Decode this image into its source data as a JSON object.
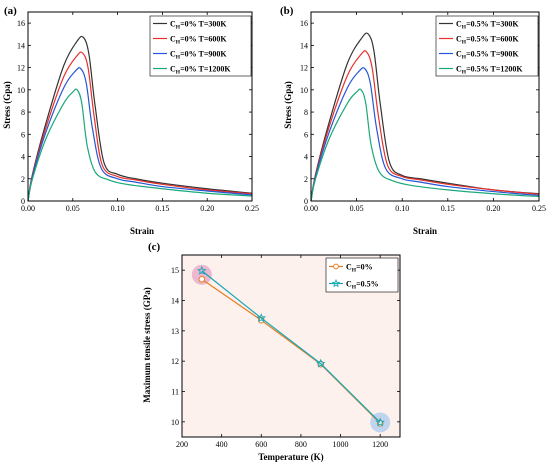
{
  "chart_data": [
    {
      "panel": "(a)",
      "type": "line",
      "xlabel": "Strain",
      "ylabel": "Stress (Gpa)",
      "xlim": [
        0,
        0.25
      ],
      "ylim": [
        0,
        17
      ],
      "xticks": [
        "0.00",
        "0.05",
        "0.10",
        "0.15",
        "0.20",
        "0.25"
      ],
      "yticks": [
        "0",
        "2",
        "4",
        "6",
        "8",
        "10",
        "12",
        "14",
        "16"
      ],
      "legend_position": "top-right",
      "series": [
        {
          "name": "C",
          "sub": "H",
          "rest": "=0% T=300K",
          "color": "#333333",
          "x": [
            0,
            0.005,
            0.02,
            0.04,
            0.055,
            0.062,
            0.068,
            0.075,
            0.085,
            0.1,
            0.12,
            0.15,
            0.2,
            0.25
          ],
          "y": [
            0,
            2.4,
            7.0,
            12.2,
            14.4,
            14.7,
            13.2,
            8.5,
            3.4,
            2.4,
            2.0,
            1.6,
            1.1,
            0.7
          ]
        },
        {
          "name": "C",
          "sub": "H",
          "rest": "=0% T=600K",
          "color": "#e8302a",
          "x": [
            0,
            0.005,
            0.02,
            0.04,
            0.055,
            0.061,
            0.067,
            0.074,
            0.083,
            0.1,
            0.12,
            0.15,
            0.2,
            0.25
          ],
          "y": [
            0,
            2.3,
            6.6,
            11.2,
            13.1,
            13.3,
            12.0,
            7.5,
            3.2,
            2.2,
            1.9,
            1.5,
            1.0,
            0.65
          ]
        },
        {
          "name": "C",
          "sub": "H",
          "rest": "=0% T=900K",
          "color": "#2457d6",
          "x": [
            0,
            0.005,
            0.02,
            0.04,
            0.053,
            0.059,
            0.065,
            0.072,
            0.082,
            0.1,
            0.12,
            0.15,
            0.2,
            0.25
          ],
          "y": [
            0,
            2.2,
            6.2,
            10.2,
            11.7,
            11.9,
            10.6,
            6.5,
            2.9,
            2.0,
            1.7,
            1.3,
            0.9,
            0.55
          ]
        },
        {
          "name": "C",
          "sub": "H",
          "rest": "=0% T=1200K",
          "color": "#1aa87c",
          "x": [
            0,
            0.005,
            0.02,
            0.04,
            0.05,
            0.055,
            0.06,
            0.066,
            0.075,
            0.09,
            0.11,
            0.15,
            0.2,
            0.25
          ],
          "y": [
            0,
            2.0,
            5.6,
            8.8,
            9.8,
            10.0,
            8.8,
            5.0,
            2.6,
            1.9,
            1.5,
            1.1,
            0.7,
            0.45
          ]
        }
      ]
    },
    {
      "panel": "(b)",
      "type": "line",
      "xlabel": "Strain",
      "ylabel": "Stress (Gpa)",
      "xlim": [
        0,
        0.25
      ],
      "ylim": [
        0,
        17
      ],
      "xticks": [
        "0.00",
        "0.05",
        "0.10",
        "0.15",
        "0.20",
        "0.25"
      ],
      "yticks": [
        "0",
        "2",
        "4",
        "6",
        "8",
        "10",
        "12",
        "14",
        "16"
      ],
      "legend_position": "top-right",
      "series": [
        {
          "name": "C",
          "sub": "H",
          "rest": "=0.5% T=300K",
          "color": "#333333",
          "x": [
            0,
            0.005,
            0.02,
            0.04,
            0.056,
            0.063,
            0.069,
            0.076,
            0.086,
            0.1,
            0.12,
            0.15,
            0.2,
            0.25
          ],
          "y": [
            0,
            2.4,
            7.1,
            12.4,
            14.7,
            15.0,
            13.5,
            8.7,
            3.5,
            2.3,
            2.0,
            1.6,
            1.0,
            0.65
          ]
        },
        {
          "name": "C",
          "sub": "H",
          "rest": "=0.5% T=600K",
          "color": "#e8302a",
          "x": [
            0,
            0.005,
            0.02,
            0.04,
            0.055,
            0.061,
            0.067,
            0.074,
            0.084,
            0.1,
            0.12,
            0.15,
            0.2,
            0.25
          ],
          "y": [
            0,
            2.3,
            6.7,
            11.3,
            13.2,
            13.4,
            12.0,
            7.6,
            3.2,
            2.2,
            1.9,
            1.5,
            1.0,
            0.6
          ]
        },
        {
          "name": "C",
          "sub": "H",
          "rest": "=0.5% T=900K",
          "color": "#2457d6",
          "x": [
            0,
            0.005,
            0.02,
            0.04,
            0.053,
            0.059,
            0.065,
            0.072,
            0.082,
            0.1,
            0.12,
            0.15,
            0.2,
            0.25
          ],
          "y": [
            0,
            2.2,
            6.2,
            10.2,
            11.7,
            11.9,
            10.6,
            6.5,
            2.9,
            2.0,
            1.7,
            1.3,
            0.85,
            0.5
          ]
        },
        {
          "name": "C",
          "sub": "H",
          "rest": "=0.5% T=1200K",
          "color": "#1aa87c",
          "x": [
            0,
            0.005,
            0.02,
            0.04,
            0.05,
            0.055,
            0.06,
            0.066,
            0.075,
            0.09,
            0.11,
            0.15,
            0.2,
            0.25
          ],
          "y": [
            0,
            2.0,
            5.6,
            8.8,
            9.8,
            10.0,
            8.8,
            5.0,
            2.6,
            1.8,
            1.4,
            1.0,
            0.65,
            0.4
          ]
        }
      ]
    },
    {
      "panel": "(c)",
      "type": "line",
      "xlabel": "Temperature (K)",
      "ylabel": "Maximum tensile stress (GPa)",
      "xlim": [
        200,
        1300
      ],
      "ylim": [
        9.5,
        15.5
      ],
      "xticks": [
        "200",
        "400",
        "600",
        "800",
        "1000",
        "1200"
      ],
      "yticks": [
        "10",
        "11",
        "12",
        "13",
        "14",
        "15"
      ],
      "legend_position": "top-right",
      "background": "#fdf1ee",
      "highlights": [
        {
          "x": 300,
          "y": 14.85,
          "color": "#e6a3c4"
        },
        {
          "x": 1200,
          "y": 9.98,
          "color": "#a9c9ee"
        }
      ],
      "series": [
        {
          "name": "C",
          "sub": "H",
          "rest": "=0%",
          "color": "#e67e22",
          "marker": "circle",
          "x": [
            300,
            600,
            900,
            1200
          ],
          "y": [
            14.7,
            13.35,
            11.9,
            9.95
          ]
        },
        {
          "name": "C",
          "sub": "H",
          "rest": "=0.5%",
          "color": "#17a8b8",
          "marker": "star",
          "x": [
            300,
            600,
            900,
            1200
          ],
          "y": [
            14.98,
            13.42,
            11.92,
            9.98
          ]
        }
      ]
    }
  ]
}
